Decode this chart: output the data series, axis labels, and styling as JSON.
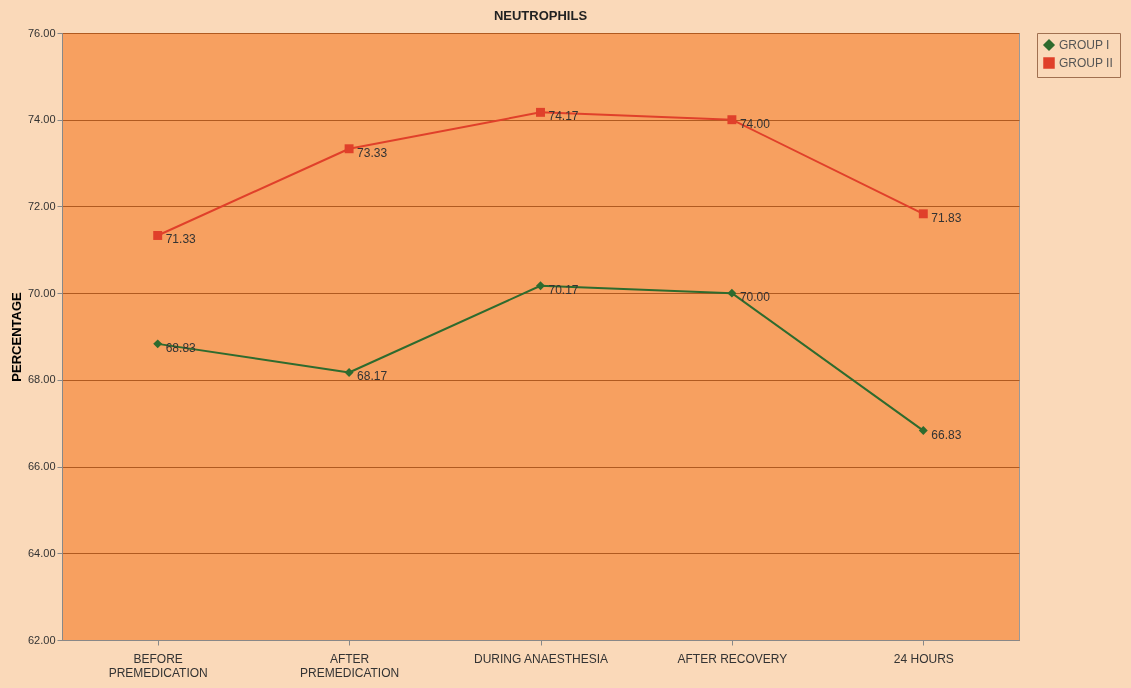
{
  "chart_data": {
    "type": "line",
    "title": "NEUTROPHILS",
    "ylabel": "PERCENTAGE",
    "categories": [
      "BEFORE\nPREMEDICATION",
      "AFTER\nPREMEDICATION",
      "DURING ANAESTHESIA",
      "AFTER RECOVERY",
      "24 HOURS"
    ],
    "series": [
      {
        "name": "GROUP I",
        "color": "#2e6b2e",
        "marker": "diamond",
        "line_style": "solid",
        "values": [
          68.83,
          68.17,
          70.17,
          70.0,
          66.83
        ],
        "value_labels": [
          "68.83",
          "68.17",
          "70.17",
          "70.00",
          "66.83"
        ]
      },
      {
        "name": "GROUP II",
        "color": "#e0402a",
        "marker": "square",
        "line_style": "solid",
        "values": [
          71.33,
          73.33,
          74.17,
          74.0,
          71.83
        ],
        "value_labels": [
          "71.33",
          "73.33",
          "74.17",
          "74.00",
          "71.83"
        ]
      }
    ],
    "ylim": [
      62,
      76
    ],
    "yticks": [
      {
        "value": 62,
        "label": "62.00"
      },
      {
        "value": 64,
        "label": "64.00"
      },
      {
        "value": 66,
        "label": "66.00"
      },
      {
        "value": 68,
        "label": "68.00"
      },
      {
        "value": 70,
        "label": "70.00"
      },
      {
        "value": 72,
        "label": "72.00"
      },
      {
        "value": 74,
        "label": "74.00"
      },
      {
        "value": 76,
        "label": "76.00"
      }
    ],
    "grid": "y",
    "legend": "right"
  }
}
